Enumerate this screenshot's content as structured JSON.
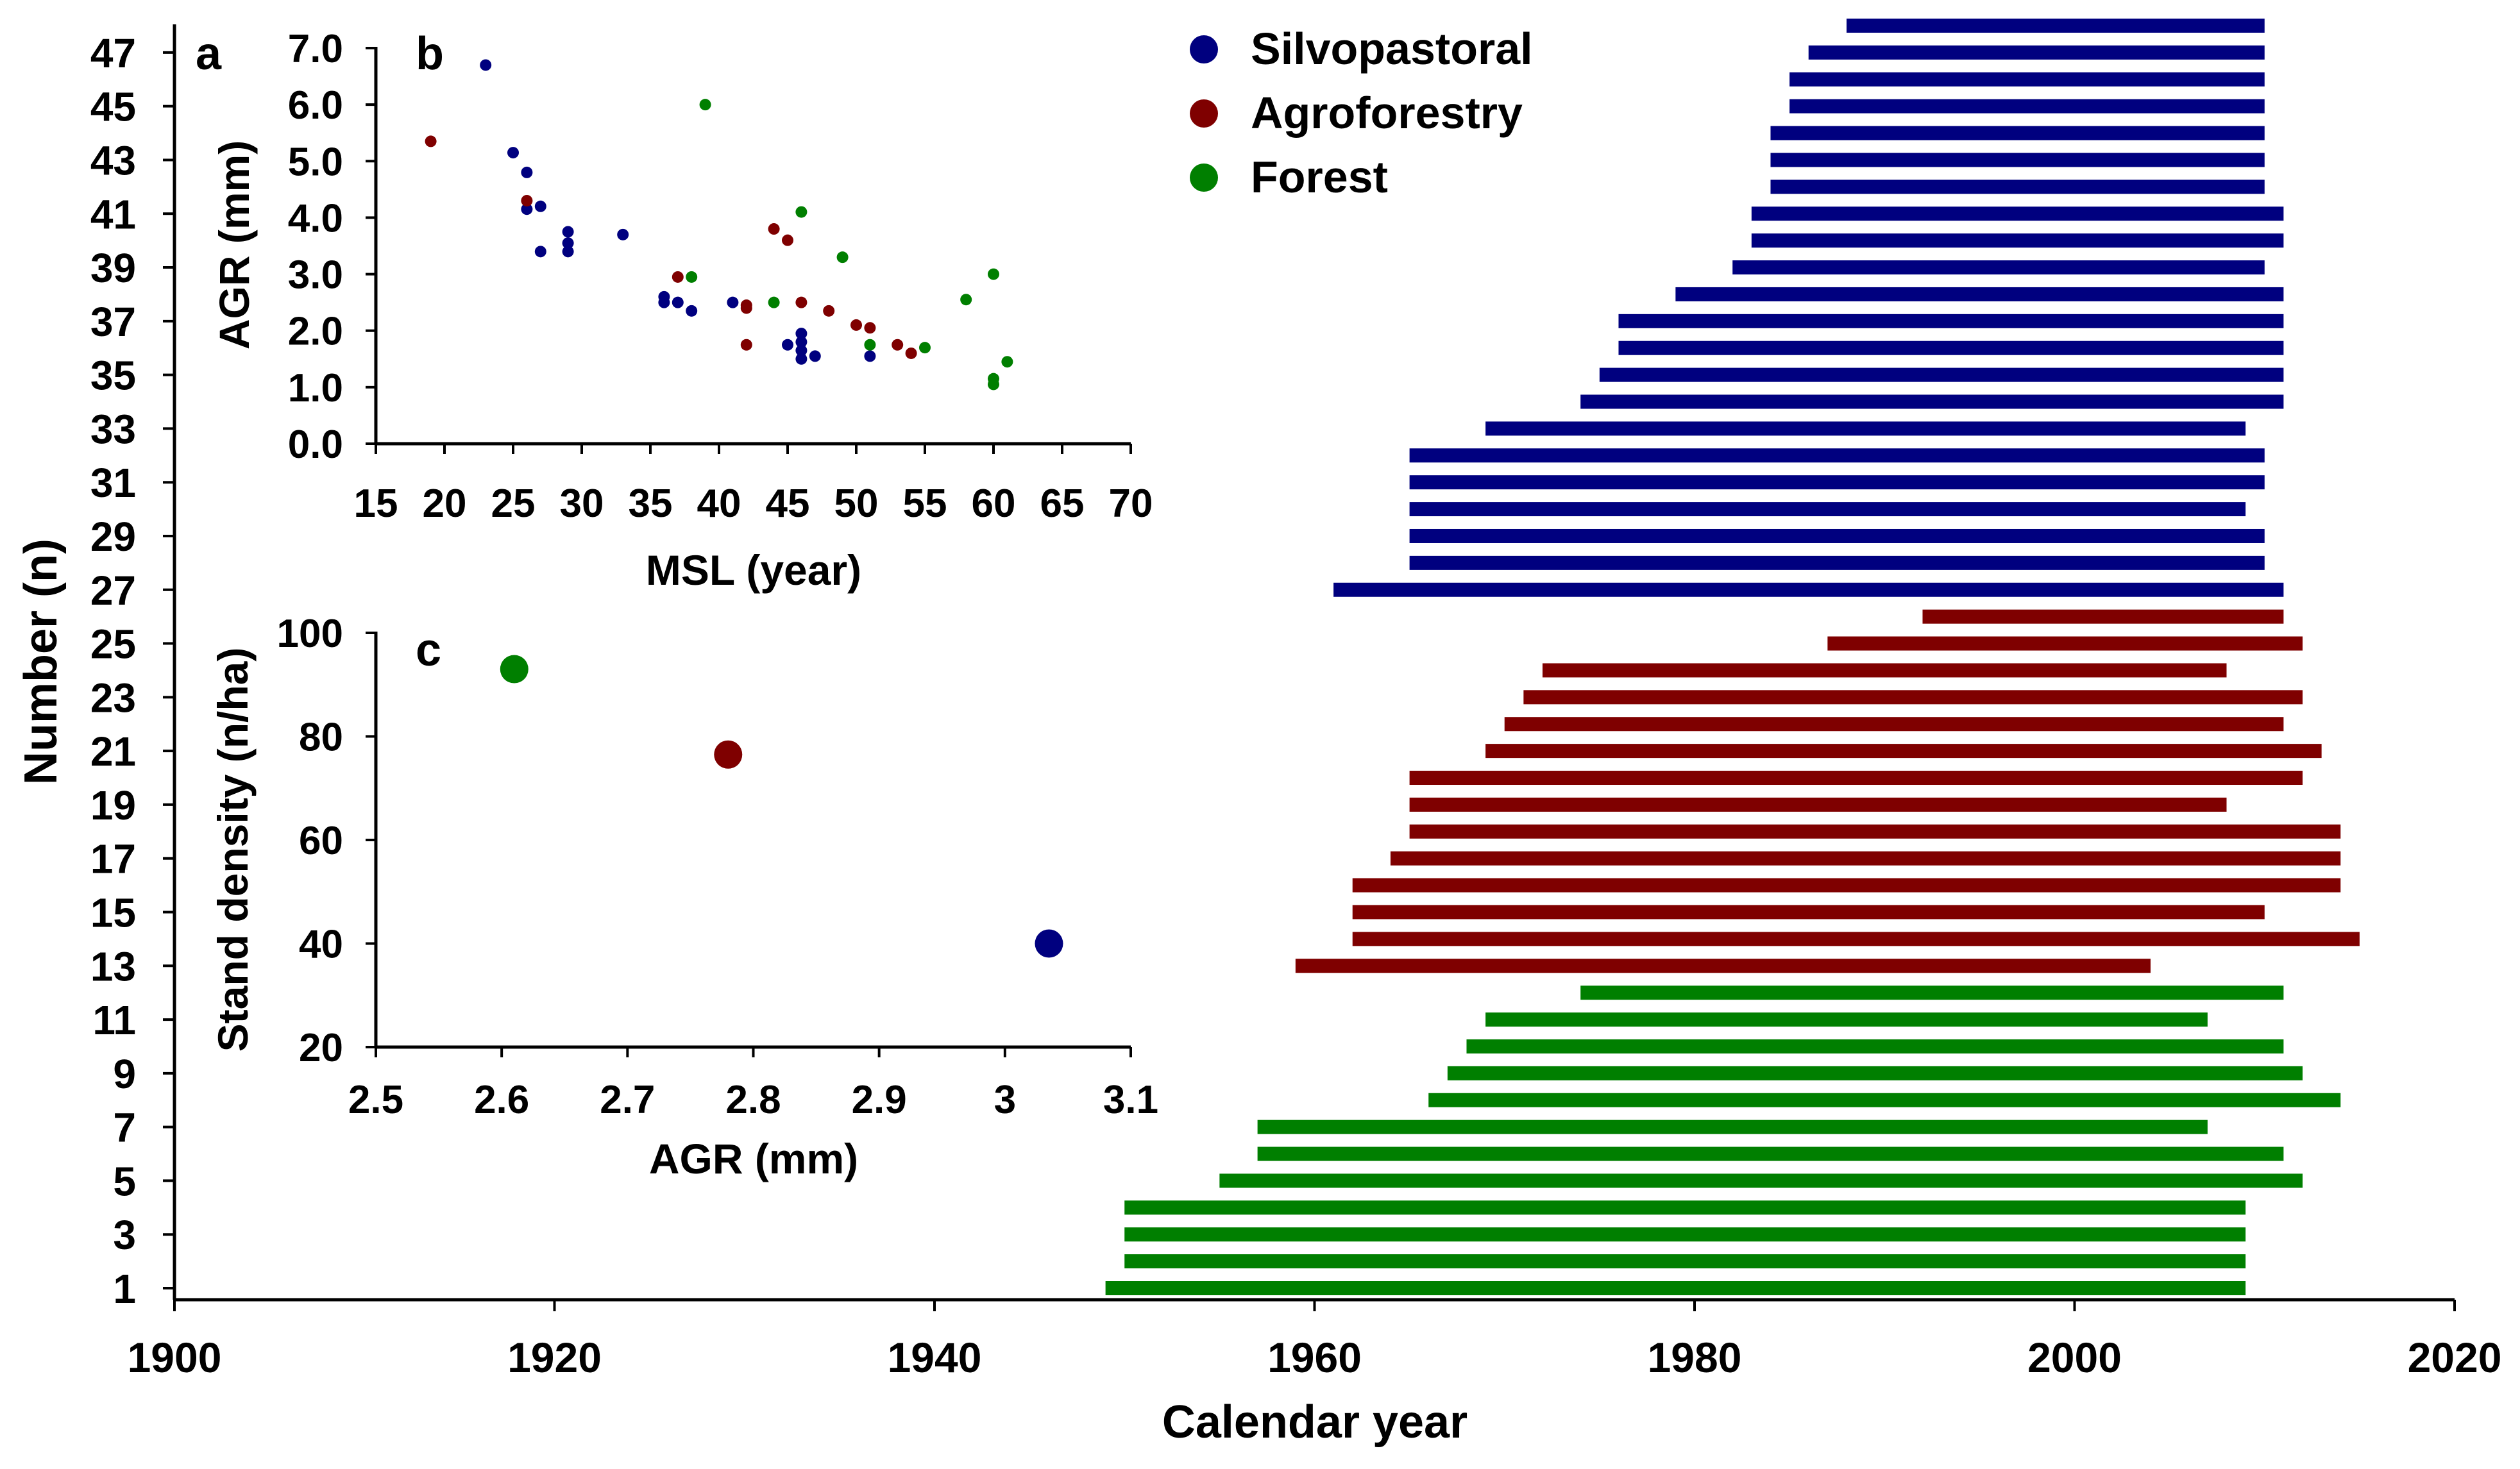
{
  "legend": [
    {
      "label": "Silvopastoral",
      "color": "#00007f"
    },
    {
      "label": "Agroforestry",
      "color": "#7f0000"
    },
    {
      "label": "Forest",
      "color": "#007f00"
    }
  ],
  "chart_data": [
    {
      "panel": "a",
      "type": "bar",
      "orientation": "horizontal",
      "xlabel": "Calendar year",
      "ylabel": "Number (n)",
      "xlim": [
        1900,
        2020
      ],
      "ylim": [
        1,
        48
      ],
      "xticks": [
        1900,
        1920,
        1940,
        1960,
        1980,
        2000,
        2020
      ],
      "yticks": [
        1,
        3,
        5,
        7,
        9,
        11,
        13,
        15,
        17,
        19,
        21,
        23,
        25,
        27,
        29,
        31,
        33,
        35,
        37,
        39,
        41,
        43,
        45,
        47
      ],
      "series": [
        {
          "name": "Forest",
          "color": "#007f00",
          "values": [
            {
              "n": 1,
              "start": 1949,
              "end": 2009
            },
            {
              "n": 2,
              "start": 1950,
              "end": 2009
            },
            {
              "n": 3,
              "start": 1950,
              "end": 2009
            },
            {
              "n": 4,
              "start": 1950,
              "end": 2009
            },
            {
              "n": 5,
              "start": 1955,
              "end": 2012
            },
            {
              "n": 6,
              "start": 1957,
              "end": 2011
            },
            {
              "n": 7,
              "start": 1957,
              "end": 2007
            },
            {
              "n": 8,
              "start": 1966,
              "end": 2014
            },
            {
              "n": 9,
              "start": 1967,
              "end": 2012
            },
            {
              "n": 10,
              "start": 1968,
              "end": 2011
            },
            {
              "n": 11,
              "start": 1969,
              "end": 2007
            },
            {
              "n": 12,
              "start": 1974,
              "end": 2011
            }
          ]
        },
        {
          "name": "Agroforestry",
          "color": "#7f0000",
          "values": [
            {
              "n": 13,
              "start": 1959,
              "end": 2004
            },
            {
              "n": 14,
              "start": 1962,
              "end": 2015
            },
            {
              "n": 15,
              "start": 1962,
              "end": 2010
            },
            {
              "n": 16,
              "start": 1962,
              "end": 2014
            },
            {
              "n": 17,
              "start": 1964,
              "end": 2014
            },
            {
              "n": 18,
              "start": 1965,
              "end": 2014
            },
            {
              "n": 19,
              "start": 1965,
              "end": 2008
            },
            {
              "n": 20,
              "start": 1965,
              "end": 2012
            },
            {
              "n": 21,
              "start": 1969,
              "end": 2013
            },
            {
              "n": 22,
              "start": 1970,
              "end": 2011
            },
            {
              "n": 23,
              "start": 1971,
              "end": 2012
            },
            {
              "n": 24,
              "start": 1972,
              "end": 2008
            },
            {
              "n": 25,
              "start": 1987,
              "end": 2012
            },
            {
              "n": 26,
              "start": 1992,
              "end": 2011
            }
          ]
        },
        {
          "name": "Silvopastoral",
          "color": "#00007f",
          "values": [
            {
              "n": 27,
              "start": 1961,
              "end": 2011
            },
            {
              "n": 28,
              "start": 1965,
              "end": 2010
            },
            {
              "n": 29,
              "start": 1965,
              "end": 2010
            },
            {
              "n": 30,
              "start": 1965,
              "end": 2009
            },
            {
              "n": 31,
              "start": 1965,
              "end": 2010
            },
            {
              "n": 32,
              "start": 1965,
              "end": 2010
            },
            {
              "n": 33,
              "start": 1969,
              "end": 2009
            },
            {
              "n": 34,
              "start": 1974,
              "end": 2011
            },
            {
              "n": 35,
              "start": 1975,
              "end": 2011
            },
            {
              "n": 36,
              "start": 1976,
              "end": 2011
            },
            {
              "n": 37,
              "start": 1976,
              "end": 2011
            },
            {
              "n": 38,
              "start": 1979,
              "end": 2011
            },
            {
              "n": 39,
              "start": 1982,
              "end": 2010
            },
            {
              "n": 40,
              "start": 1983,
              "end": 2011
            },
            {
              "n": 41,
              "start": 1983,
              "end": 2011
            },
            {
              "n": 42,
              "start": 1984,
              "end": 2010
            },
            {
              "n": 43,
              "start": 1984,
              "end": 2010
            },
            {
              "n": 44,
              "start": 1984,
              "end": 2010
            },
            {
              "n": 45,
              "start": 1985,
              "end": 2010
            },
            {
              "n": 46,
              "start": 1985,
              "end": 2010
            },
            {
              "n": 47,
              "start": 1986,
              "end": 2010
            },
            {
              "n": 48,
              "start": 1988,
              "end": 2010
            }
          ]
        }
      ]
    },
    {
      "panel": "b",
      "type": "scatter",
      "xlabel": "MSL (year)",
      "ylabel": "AGR (mm)",
      "xlim": [
        15,
        70
      ],
      "ylim": [
        0,
        7
      ],
      "xticks": [
        "15",
        "20",
        "25",
        "30",
        "35",
        "40",
        "45",
        "50",
        "55",
        "60",
        "65",
        "70"
      ],
      "yticks": [
        "0.0",
        "1.0",
        "2.0",
        "3.0",
        "4.0",
        "5.0",
        "6.0",
        "7.0"
      ],
      "series": [
        {
          "name": "Silvopastoral",
          "color": "#00007f",
          "points": [
            [
              23,
              6.7
            ],
            [
              25,
              5.15
            ],
            [
              26,
              4.8
            ],
            [
              26,
              4.15
            ],
            [
              27,
              4.2
            ],
            [
              27,
              3.4
            ],
            [
              29,
              3.75
            ],
            [
              29,
              3.55
            ],
            [
              29,
              3.4
            ],
            [
              33,
              3.7
            ],
            [
              36,
              2.6
            ],
            [
              36,
              2.5
            ],
            [
              37,
              2.5
            ],
            [
              38,
              2.35
            ],
            [
              41,
              2.5
            ],
            [
              45,
              1.75
            ],
            [
              46,
              1.95
            ],
            [
              46,
              1.8
            ],
            [
              46,
              1.65
            ],
            [
              46,
              1.5
            ],
            [
              47,
              1.55
            ],
            [
              51,
              1.55
            ]
          ]
        },
        {
          "name": "Agroforestry",
          "color": "#7f0000",
          "points": [
            [
              19,
              5.35
            ],
            [
              26,
              4.3
            ],
            [
              37,
              2.95
            ],
            [
              42,
              2.45
            ],
            [
              42,
              2.4
            ],
            [
              42,
              1.75
            ],
            [
              44,
              3.8
            ],
            [
              45,
              3.6
            ],
            [
              46,
              2.5
            ],
            [
              48,
              2.35
            ],
            [
              50,
              2.1
            ],
            [
              51,
              2.05
            ],
            [
              53,
              1.75
            ],
            [
              54,
              1.6
            ]
          ]
        },
        {
          "name": "Forest",
          "color": "#007f00",
          "points": [
            [
              38,
              2.95
            ],
            [
              39,
              6.0
            ],
            [
              44,
              2.5
            ],
            [
              46,
              4.1
            ],
            [
              49,
              3.3
            ],
            [
              51,
              1.75
            ],
            [
              55,
              1.7
            ],
            [
              58,
              2.55
            ],
            [
              60,
              3.0
            ],
            [
              60,
              1.15
            ],
            [
              60,
              1.05
            ],
            [
              61,
              1.45
            ]
          ]
        }
      ]
    },
    {
      "panel": "c",
      "type": "scatter",
      "xlabel": "AGR (mm)",
      "ylabel": "Stand density (n/ha)",
      "xlim": [
        2.5,
        3.1
      ],
      "ylim": [
        20,
        100
      ],
      "xticks": [
        "2.5",
        "2.6",
        "2.7",
        "2.8",
        "2.9",
        "3",
        "3.1"
      ],
      "yticks": [
        "20",
        "40",
        "60",
        "80",
        "100"
      ],
      "series": [
        {
          "name": "Forest",
          "color": "#007f00",
          "points": [
            [
              2.61,
              93
            ]
          ]
        },
        {
          "name": "Agroforestry",
          "color": "#7f0000",
          "points": [
            [
              2.78,
              76.5
            ]
          ]
        },
        {
          "name": "Silvopastoral",
          "color": "#00007f",
          "points": [
            [
              3.035,
              40
            ]
          ]
        }
      ]
    }
  ]
}
